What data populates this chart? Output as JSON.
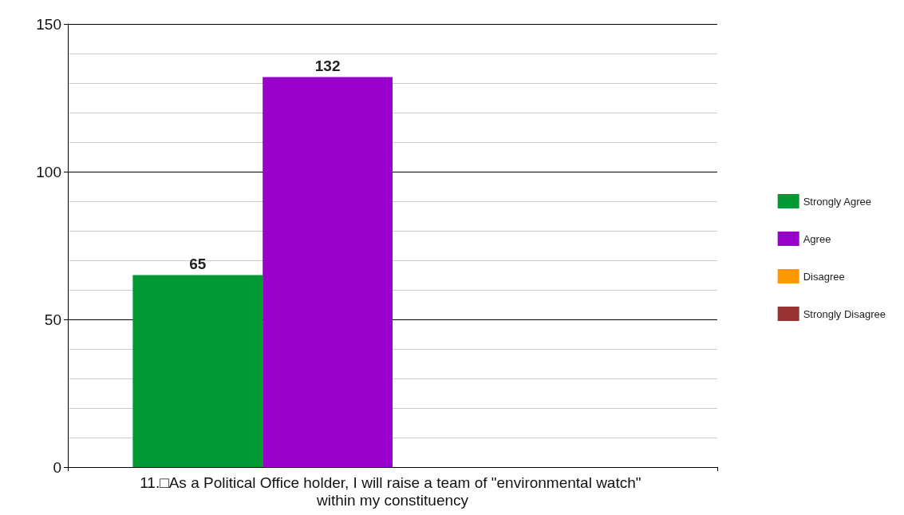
{
  "chart_data": {
    "type": "bar",
    "categories": [
      "11.□As a Political Office holder, I will raise a team of \"environmental watch\" within my constituency"
    ],
    "series": [
      {
        "name": "Strongly Agree",
        "color": "#009933",
        "values": [
          65
        ],
        "value_labels": [
          "65"
        ]
      },
      {
        "name": "Agree",
        "color": "#9900cc",
        "values": [
          132
        ],
        "value_labels": [
          "132"
        ]
      },
      {
        "name": "Disagree",
        "color": "#ff9900",
        "values": [
          0
        ],
        "value_labels": [
          null
        ]
      },
      {
        "name": "Strongly Disagree",
        "color": "#993333",
        "values": [
          0
        ],
        "value_labels": [
          null
        ]
      }
    ],
    "ylim": [
      0,
      150
    ],
    "yticks": [
      0,
      50,
      100,
      150
    ],
    "grid": true,
    "legend": "right"
  }
}
